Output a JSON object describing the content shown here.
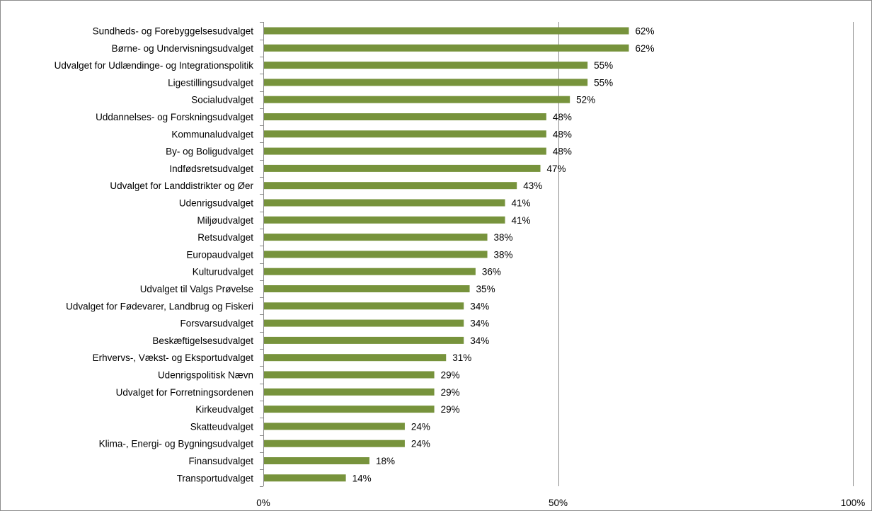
{
  "chart_data": {
    "type": "bar",
    "orientation": "horizontal",
    "categories": [
      "Sundheds- og Forebyggelsesudvalget",
      "Børne- og Undervisningsudvalget",
      "Udvalget for Udlændinge- og Integrationspolitik",
      "Ligestillingsudvalget",
      "Socialudvalget",
      "Uddannelses- og Forskningsudvalget",
      "Kommunaludvalget",
      "By- og Boligudvalget",
      "Indfødsretsudvalget",
      "Udvalget for Landdistrikter og Øer",
      "Udenrigsudvalget",
      "Miljøudvalget",
      "Retsudvalget",
      "Europaudvalget",
      "Kulturudvalget",
      "Udvalget til Valgs Prøvelse",
      "Udvalget for Fødevarer, Landbrug og Fiskeri",
      "Forsvarsudvalget",
      "Beskæftigelsesudvalget",
      "Erhvervs-, Vækst- og Eksportudvalget",
      "Udenrigspolitisk Nævn",
      "Udvalget for Forretningsordenen",
      "Kirkeudvalget",
      "Skatteudvalget",
      "Klima-, Energi- og Bygningsudvalget",
      "Finansudvalget",
      "Transportudvalget"
    ],
    "values": [
      62,
      62,
      55,
      55,
      52,
      48,
      48,
      48,
      47,
      43,
      41,
      41,
      38,
      38,
      36,
      35,
      34,
      34,
      34,
      31,
      29,
      29,
      29,
      24,
      24,
      18,
      14
    ],
    "value_labels": [
      "62%",
      "62%",
      "55%",
      "55%",
      "52%",
      "48%",
      "48%",
      "48%",
      "47%",
      "43%",
      "41%",
      "41%",
      "38%",
      "38%",
      "36%",
      "35%",
      "34%",
      "34%",
      "34%",
      "31%",
      "29%",
      "29%",
      "29%",
      "24%",
      "24%",
      "18%",
      "14%"
    ],
    "x_ticks": [
      0,
      50,
      100
    ],
    "x_tick_labels": [
      "0%",
      "50%",
      "100%"
    ],
    "xlim": [
      0,
      100
    ],
    "title": "",
    "xlabel": "",
    "ylabel": "",
    "grid": "vertical major gridlines",
    "legend": "none",
    "colors": {
      "bar": "#77933c",
      "gridline": "#8c8c8c",
      "axis": "#8c8c8c",
      "border": "#8c8c8c",
      "text": "#000000"
    }
  }
}
